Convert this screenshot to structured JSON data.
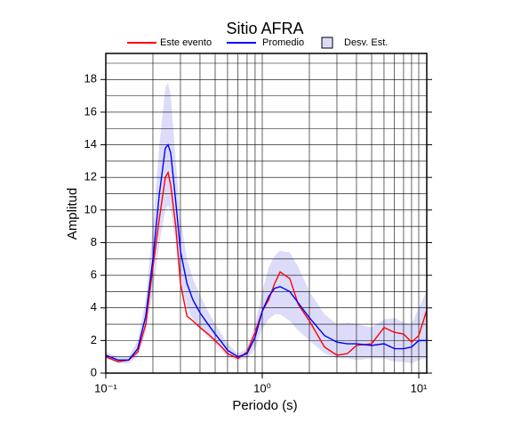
{
  "chart_data": {
    "type": "line",
    "title": "Sitio AFRA",
    "x_label": "Periodo (s)",
    "y_label": "Amplitud",
    "xscale": "log",
    "xlim": [
      0.1,
      11.25
    ],
    "ylim": [
      0,
      19.6
    ],
    "xticks": [
      {
        "value": 0.1,
        "label": "10⁻¹"
      },
      {
        "value": 1,
        "label": "10⁰"
      },
      {
        "value": 10,
        "label": "10¹"
      }
    ],
    "xminor": [
      0.2,
      0.3,
      0.4,
      0.5,
      0.6,
      0.7,
      0.8,
      0.9,
      2,
      3,
      4,
      5,
      6,
      7,
      8,
      9
    ],
    "yticks": [
      0,
      2,
      4,
      6,
      8,
      10,
      12,
      14,
      16,
      18
    ],
    "yminor": [
      1,
      3,
      5,
      7,
      9,
      11,
      13,
      15,
      17,
      19
    ],
    "grid": true,
    "x": [
      0.1,
      0.12,
      0.14,
      0.16,
      0.18,
      0.2,
      0.22,
      0.24,
      0.25,
      0.26,
      0.28,
      0.3,
      0.33,
      0.36,
      0.4,
      0.45,
      0.5,
      0.55,
      0.6,
      0.7,
      0.8,
      0.9,
      1.0,
      1.1,
      1.2,
      1.3,
      1.5,
      1.7,
      2.0,
      2.5,
      3.0,
      3.5,
      4.0,
      5.0,
      6.0,
      7.0,
      8.0,
      9.0,
      10.0,
      11.2
    ],
    "band": {
      "name": "Desv. Est.",
      "color": "#dcdcfa",
      "upper": [
        1.3,
        1.0,
        1.0,
        2.0,
        4.5,
        9,
        14,
        17.5,
        17.8,
        17,
        13,
        9.5,
        7,
        5.8,
        4.8,
        3.8,
        3.0,
        2.4,
        1.8,
        1.2,
        1.5,
        3.0,
        5.0,
        6.5,
        7.2,
        7.5,
        7.4,
        6.5,
        5.0,
        3.6,
        3.0,
        3.1,
        3.0,
        2.8,
        3.3,
        3.4,
        3.1,
        3.0,
        4.0,
        5.0
      ],
      "lower": [
        0.9,
        0.6,
        0.6,
        1.0,
        2.5,
        5,
        8,
        10,
        10.3,
        10,
        8,
        5.5,
        4.0,
        3.3,
        2.7,
        2.2,
        1.8,
        1.4,
        1.0,
        0.8,
        0.9,
        1.5,
        2.7,
        3.3,
        3.6,
        3.6,
        3.2,
        2.6,
        2.0,
        1.2,
        0.9,
        0.9,
        0.8,
        0.9,
        0.9,
        0.7,
        0.7,
        0.6,
        0.8,
        0.9
      ]
    },
    "series": [
      {
        "name": "Este evento",
        "color": "#ff0000",
        "values": [
          1.0,
          0.7,
          0.8,
          1.3,
          3,
          6.5,
          9.5,
          12,
          12.3,
          11.5,
          9,
          5.5,
          3.5,
          3.2,
          2.8,
          2.4,
          2.0,
          1.6,
          1.2,
          0.9,
          1.3,
          2.5,
          3.8,
          4.5,
          5.5,
          6.2,
          5.8,
          4.2,
          3.2,
          1.6,
          1.1,
          1.2,
          1.7,
          1.8,
          2.8,
          2.5,
          2.4,
          1.9,
          2.3,
          3.8
        ]
      },
      {
        "name": "Promedio",
        "color": "#0000ff",
        "values": [
          1.1,
          0.8,
          0.8,
          1.5,
          3.5,
          7,
          11,
          13.8,
          14,
          13.5,
          10.5,
          7.5,
          5.5,
          4.5,
          3.7,
          3.0,
          2.4,
          1.9,
          1.4,
          1.0,
          1.2,
          2.2,
          3.8,
          4.7,
          5.2,
          5.3,
          5.0,
          4.3,
          3.4,
          2.3,
          1.9,
          1.8,
          1.8,
          1.7,
          1.8,
          1.5,
          1.5,
          1.6,
          2.0,
          2.0
        ]
      }
    ]
  }
}
